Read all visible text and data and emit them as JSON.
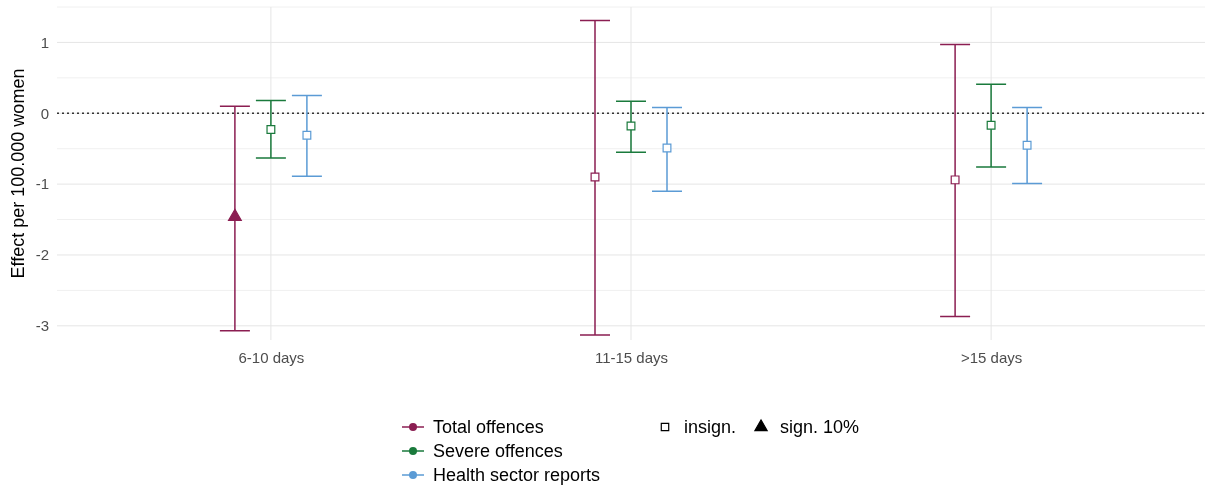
{
  "chart_data": {
    "type": "scatter",
    "ylabel": "Effect per 100.000 women",
    "categories": [
      "6-10 days",
      "11-15 days",
      ">15 days"
    ],
    "ylim": [
      -3.2,
      1.5
    ],
    "yticks": [
      -3,
      -2,
      -1,
      0,
      1
    ],
    "grid": true,
    "legend": "bottom",
    "ref_lines": [
      {
        "axis": "y",
        "value": 0,
        "line_style": "dotted",
        "color": "#333333"
      }
    ],
    "series": [
      {
        "name": "Total offences",
        "color": "#8b1e52",
        "values": [
          -1.46,
          -0.9,
          -0.94
        ],
        "errors": [
          [
            -3.07,
            0.1
          ],
          [
            -3.13,
            1.31
          ],
          [
            -2.87,
            0.97
          ]
        ],
        "marker": [
          "triangle",
          "square",
          "square"
        ]
      },
      {
        "name": "Severe offences",
        "color": "#1a7a3c",
        "values": [
          -0.23,
          -0.18,
          -0.17
        ],
        "errors": [
          [
            -0.63,
            0.18
          ],
          [
            -0.55,
            0.17
          ],
          [
            -0.76,
            0.41
          ]
        ],
        "marker": [
          "square",
          "square",
          "square"
        ]
      },
      {
        "name": "Health sector reports",
        "color": "#5b9bd5",
        "values": [
          -0.31,
          -0.49,
          -0.45
        ],
        "errors": [
          [
            -0.89,
            0.25
          ],
          [
            -1.1,
            0.08
          ],
          [
            -0.99,
            0.08
          ]
        ],
        "marker": [
          "square",
          "square",
          "square"
        ]
      }
    ],
    "annotations": [
      "insign.",
      "sign. 10%"
    ]
  }
}
